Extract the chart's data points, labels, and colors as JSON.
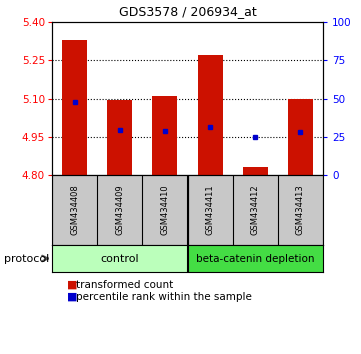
{
  "title": "GDS3578 / 206934_at",
  "samples": [
    "GSM434408",
    "GSM434409",
    "GSM434410",
    "GSM434411",
    "GSM434412",
    "GSM434413"
  ],
  "bar_bottoms": [
    4.8,
    4.8,
    4.8,
    4.8,
    4.8,
    4.8
  ],
  "bar_tops": [
    5.33,
    5.095,
    5.11,
    5.27,
    4.83,
    5.1
  ],
  "blue_markers": [
    5.085,
    4.975,
    4.972,
    4.988,
    4.948,
    4.968
  ],
  "ylim": [
    4.8,
    5.4
  ],
  "yticks_left": [
    4.8,
    4.95,
    5.1,
    5.25,
    5.4
  ],
  "yticks_right": [
    0,
    25,
    50,
    75,
    100
  ],
  "bar_color": "#cc1100",
  "blue_color": "#0000cc",
  "bg_sample": "#c8c8c8",
  "control_color": "#bbffbb",
  "beta_color": "#44dd44",
  "legend_items": [
    {
      "label": "transformed count",
      "color": "#cc1100"
    },
    {
      "label": "percentile rank within the sample",
      "color": "#0000cc"
    }
  ],
  "bar_width": 0.55,
  "n_control": 3,
  "n_beta": 3
}
